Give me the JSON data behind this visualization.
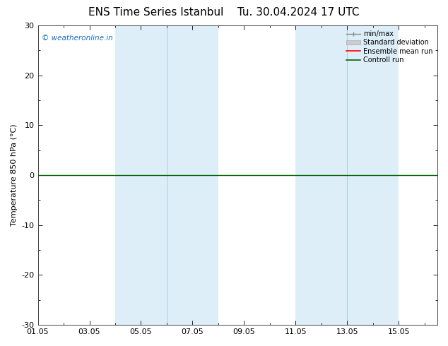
{
  "title": "ENS Time Series Istanbul",
  "title2": "Tu. 30.04.2024 17 UTC",
  "ylabel": "Temperature 850 hPa (°C)",
  "ylim": [
    -30,
    30
  ],
  "yticks": [
    -30,
    -20,
    -10,
    0,
    10,
    20,
    30
  ],
  "xtick_positions": [
    0,
    2,
    4,
    6,
    8,
    10,
    12,
    14
  ],
  "xtick_labels": [
    "01.05",
    "03.05",
    "05.05",
    "07.05",
    "09.05",
    "11.05",
    "13.05",
    "15.05"
  ],
  "xlim": [
    0,
    15.5
  ],
  "watermark": "© weatheronline.in",
  "watermark_color": "#1a6fb5",
  "shaded_bands": [
    {
      "x_start": 3.0,
      "x_end": 5.0
    },
    {
      "x_start": 5.0,
      "x_end": 7.0
    },
    {
      "x_start": 10.0,
      "x_end": 12.0
    },
    {
      "x_start": 12.0,
      "x_end": 14.0
    }
  ],
  "shade_color": "#ddeef8",
  "zero_line_color": "#006400",
  "legend_items": [
    "min/max",
    "Standard deviation",
    "Ensemble mean run",
    "Controll run"
  ],
  "legend_minmax_color": "#888888",
  "legend_std_color": "#cccccc",
  "legend_ens_color": "#ff0000",
  "legend_ctrl_color": "#006400",
  "background_color": "#ffffff",
  "title_fontsize": 11,
  "tick_fontsize": 8,
  "ylabel_fontsize": 8,
  "legend_fontsize": 7
}
